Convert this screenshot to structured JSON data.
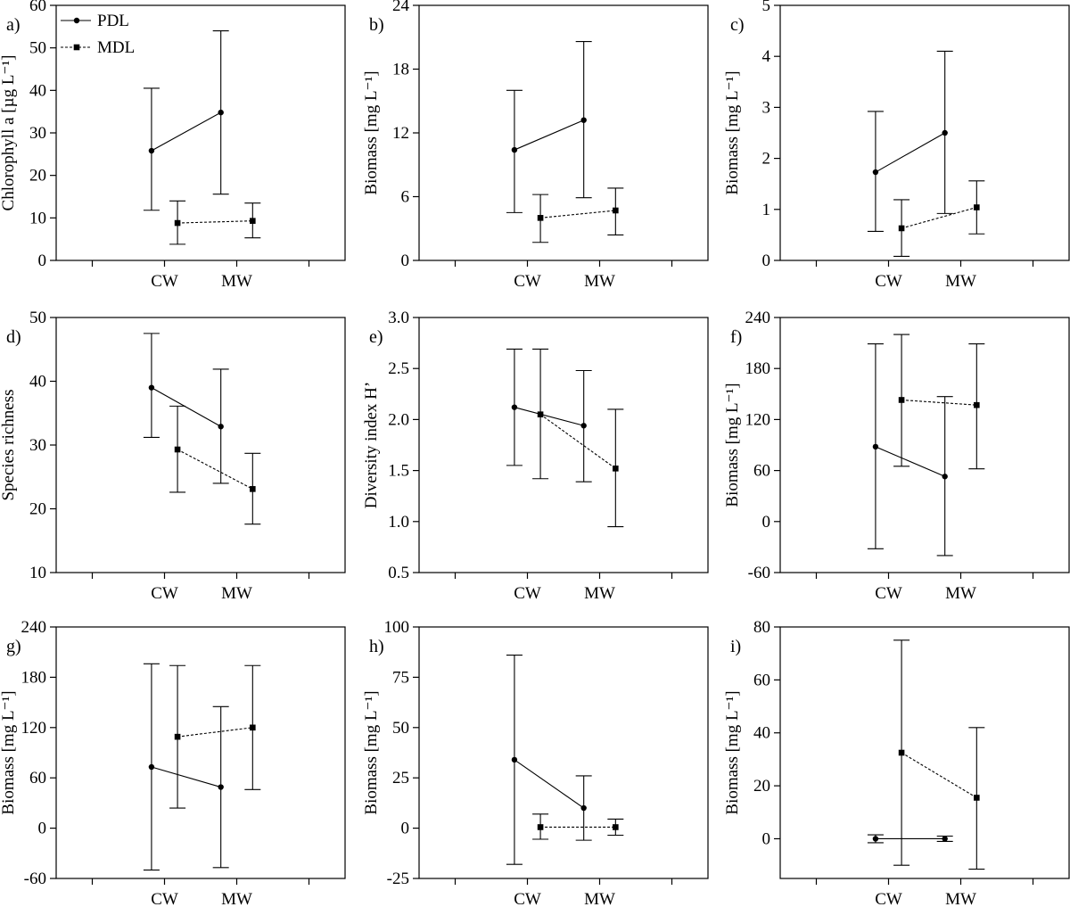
{
  "legend": [
    {
      "label": "PDL",
      "marker": "circle",
      "line": "solid"
    },
    {
      "label": "MDL",
      "marker": "square",
      "line": "dashed"
    }
  ],
  "chart_data": [
    {
      "type": "line",
      "panel_label": "a)",
      "ylabel": "Chlorophyll a [µg L⁻¹]",
      "categories": [
        "CW",
        "MW"
      ],
      "ylim": [
        0,
        60
      ],
      "yticks": [
        0,
        10,
        20,
        30,
        40,
        50,
        60
      ],
      "series": [
        {
          "name": "PDL",
          "values": [
            25.8,
            34.8
          ],
          "err_low": [
            11.8,
            15.6
          ],
          "err_high": [
            40.5,
            54.0
          ]
        },
        {
          "name": "MDL",
          "values": [
            8.8,
            9.3
          ],
          "err_low": [
            3.8,
            5.3
          ],
          "err_high": [
            14.0,
            13.5
          ]
        }
      ]
    },
    {
      "type": "line",
      "panel_label": "b)",
      "ylabel": "Biomass [mg L⁻¹]",
      "categories": [
        "CW",
        "MW"
      ],
      "ylim": [
        0,
        24
      ],
      "yticks": [
        0,
        6,
        12,
        18,
        24
      ],
      "series": [
        {
          "name": "PDL",
          "values": [
            10.4,
            13.2
          ],
          "err_low": [
            4.5,
            5.9
          ],
          "err_high": [
            16.0,
            20.6
          ]
        },
        {
          "name": "MDL",
          "values": [
            4.0,
            4.7
          ],
          "err_low": [
            1.7,
            2.4
          ],
          "err_high": [
            6.2,
            6.8
          ]
        }
      ]
    },
    {
      "type": "line",
      "panel_label": "c)",
      "ylabel": "Biomass [mg L⁻¹]",
      "categories": [
        "CW",
        "MW"
      ],
      "ylim": [
        0,
        5
      ],
      "yticks": [
        0,
        1,
        2,
        3,
        4,
        5
      ],
      "series": [
        {
          "name": "PDL",
          "values": [
            1.73,
            2.5
          ],
          "err_low": [
            0.57,
            0.92
          ],
          "err_high": [
            2.92,
            4.1
          ]
        },
        {
          "name": "MDL",
          "values": [
            0.63,
            1.04
          ],
          "err_low": [
            0.08,
            0.52
          ],
          "err_high": [
            1.19,
            1.56
          ]
        }
      ]
    },
    {
      "type": "line",
      "panel_label": "d)",
      "ylabel": "Species richness",
      "categories": [
        "CW",
        "MW"
      ],
      "ylim": [
        10,
        50
      ],
      "yticks": [
        10,
        20,
        30,
        40,
        50
      ],
      "series": [
        {
          "name": "PDL",
          "values": [
            39.0,
            32.9
          ],
          "err_low": [
            31.2,
            24.0
          ],
          "err_high": [
            47.5,
            41.9
          ]
        },
        {
          "name": "MDL",
          "values": [
            29.3,
            23.1
          ],
          "err_low": [
            22.6,
            17.6
          ],
          "err_high": [
            36.1,
            28.7
          ]
        }
      ]
    },
    {
      "type": "line",
      "panel_label": "e)",
      "ylabel": "Diversity index H’",
      "categories": [
        "CW",
        "MW"
      ],
      "ylim": [
        0.5,
        3.0
      ],
      "yticks": [
        "0.5",
        "1.0",
        "1.5",
        "2.0",
        "2.5",
        "3.0"
      ],
      "series": [
        {
          "name": "PDL",
          "values": [
            2.12,
            1.94
          ],
          "err_low": [
            1.55,
            1.39
          ],
          "err_high": [
            2.69,
            2.48
          ]
        },
        {
          "name": "MDL",
          "values": [
            2.05,
            1.52
          ],
          "err_low": [
            1.42,
            0.95
          ],
          "err_high": [
            2.69,
            2.1
          ]
        }
      ]
    },
    {
      "type": "line",
      "panel_label": "f)",
      "ylabel": "Biomass [mg L⁻¹]",
      "categories": [
        "CW",
        "MW"
      ],
      "ylim": [
        -60,
        240
      ],
      "yticks": [
        -60,
        0,
        60,
        120,
        180,
        240
      ],
      "series": [
        {
          "name": "PDL",
          "values": [
            88,
            53
          ],
          "err_low": [
            -32,
            -40
          ],
          "err_high": [
            209,
            147
          ]
        },
        {
          "name": "MDL",
          "values": [
            143,
            137
          ],
          "err_low": [
            65,
            62
          ],
          "err_high": [
            220,
            209
          ]
        }
      ]
    },
    {
      "type": "line",
      "panel_label": "g)",
      "ylabel": "Biomass [mg L⁻¹]",
      "categories": [
        "CW",
        "MW"
      ],
      "ylim": [
        -60,
        240
      ],
      "yticks": [
        -60,
        0,
        60,
        120,
        180,
        240
      ],
      "series": [
        {
          "name": "PDL",
          "values": [
            73,
            49
          ],
          "err_low": [
            -50,
            -47
          ],
          "err_high": [
            196,
            145
          ]
        },
        {
          "name": "MDL",
          "values": [
            109,
            120
          ],
          "err_low": [
            24,
            46
          ],
          "err_high": [
            194,
            194
          ]
        }
      ]
    },
    {
      "type": "line",
      "panel_label": "h)",
      "ylabel": "Biomass [mg L⁻¹]",
      "categories": [
        "CW",
        "MW"
      ],
      "ylim": [
        -25,
        100
      ],
      "yticks": [
        -25,
        0,
        25,
        50,
        75,
        100
      ],
      "series": [
        {
          "name": "PDL",
          "values": [
            34,
            10
          ],
          "err_low": [
            -18,
            -6
          ],
          "err_high": [
            86,
            26
          ]
        },
        {
          "name": "MDL",
          "values": [
            0.5,
            0.5
          ],
          "err_low": [
            -5.5,
            -3.5
          ],
          "err_high": [
            7,
            4.5
          ]
        }
      ]
    },
    {
      "type": "line",
      "panel_label": "i)",
      "ylabel": "Biomass [mg L⁻¹]",
      "categories": [
        "CW",
        "MW"
      ],
      "ylim": [
        -15,
        80
      ],
      "yticks": [
        0,
        20,
        40,
        60,
        80
      ],
      "series": [
        {
          "name": "PDL",
          "values": [
            0,
            0
          ],
          "err_low": [
            -1.5,
            -1
          ],
          "err_high": [
            1.5,
            1
          ]
        },
        {
          "name": "MDL",
          "values": [
            32.5,
            15.5
          ],
          "err_low": [
            -10,
            -11.5
          ],
          "err_high": [
            75,
            42
          ]
        }
      ]
    }
  ]
}
